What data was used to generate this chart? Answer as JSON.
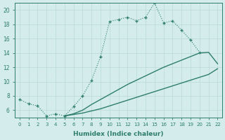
{
  "xlabel": "Humidex (Indice chaleur)",
  "line_color": "#2e7d6d",
  "bg_color": "#d4edec",
  "grid_color": "#b8d8d8",
  "ylim": [
    5,
    21
  ],
  "xlim": [
    -0.5,
    22.5
  ],
  "yticks": [
    6,
    8,
    10,
    12,
    14,
    16,
    18,
    20
  ],
  "xticks": [
    0,
    1,
    2,
    3,
    4,
    5,
    6,
    7,
    8,
    9,
    10,
    11,
    12,
    13,
    14,
    15,
    16,
    17,
    18,
    19,
    20,
    21,
    22
  ],
  "top_x": [
    0,
    1,
    2,
    3,
    4,
    5,
    6,
    7,
    8,
    9,
    10,
    11,
    12,
    13,
    14,
    15,
    16,
    17,
    18,
    19,
    20
  ],
  "top_y": [
    7.5,
    6.9,
    6.6,
    5.2,
    5.5,
    5.2,
    6.5,
    8.0,
    10.2,
    13.5,
    18.4,
    18.7,
    19.0,
    18.5,
    19.0,
    21.0,
    18.2,
    18.5,
    17.2,
    15.8,
    14.1
  ],
  "mid_x": [
    5,
    6,
    7,
    8,
    9,
    10,
    11,
    12,
    13,
    14,
    15,
    16,
    17,
    18,
    19,
    20,
    21,
    22
  ],
  "mid_y": [
    5.2,
    5.5,
    6.0,
    6.8,
    7.5,
    8.2,
    8.9,
    9.6,
    10.2,
    10.8,
    11.4,
    12.0,
    12.5,
    13.0,
    13.5,
    14.0,
    14.1,
    12.5
  ],
  "bot_x": [
    5,
    6,
    7,
    8,
    9,
    10,
    11,
    12,
    13,
    14,
    15,
    16,
    17,
    18,
    19,
    20,
    21,
    22
  ],
  "bot_y": [
    5.2,
    5.4,
    5.6,
    5.9,
    6.2,
    6.6,
    7.0,
    7.4,
    7.8,
    8.2,
    8.6,
    9.0,
    9.4,
    9.8,
    10.2,
    10.6,
    11.0,
    11.8
  ]
}
